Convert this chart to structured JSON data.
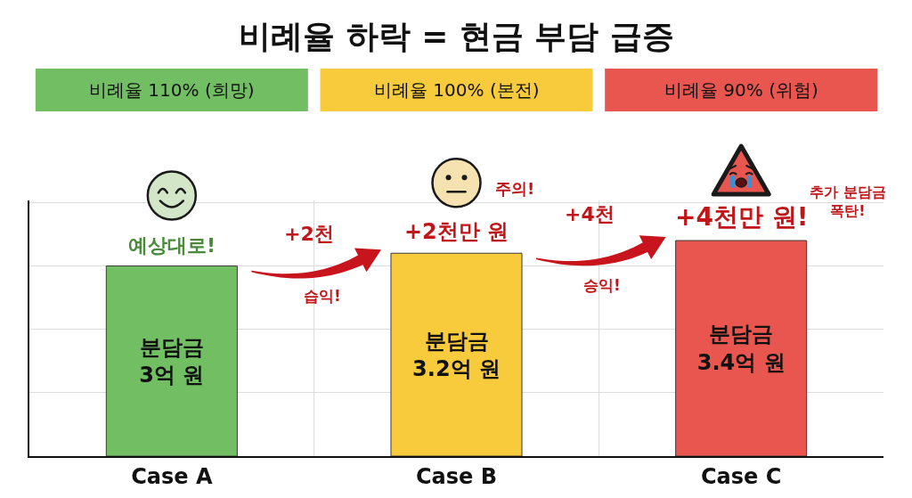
{
  "chart_data": {
    "type": "bar",
    "title": "비례율 하락 = 현금 부담 급증",
    "categories": [
      "Case A",
      "Case B",
      "Case C"
    ],
    "values": [
      3,
      3.2,
      3.4
    ],
    "colors": [
      "#72bf63",
      "#f7cb3c",
      "#e8564f"
    ],
    "value_labels": [
      "분담금\n3억 원",
      "분담금\n3.2억 원",
      "분담금\n3.4억 원"
    ],
    "grid": true,
    "tick_labels": "x",
    "annotations": [
      "비례율 110% (희망)",
      "비례율 100% (본전)",
      "비례율 90% (위험)",
      {
        "text": "예상대로!",
        "x": "Case A",
        "y": 3
      },
      {
        "text": "+2천만 원",
        "x": "Case B",
        "y": 3.2
      },
      {
        "text": "+4천만 원!",
        "x": "Case C",
        "y": 3.4
      },
      "주의!",
      "추가 분담금\n폭탄!",
      "+2천",
      "습익!",
      "+4천",
      "승익!"
    ]
  }
}
